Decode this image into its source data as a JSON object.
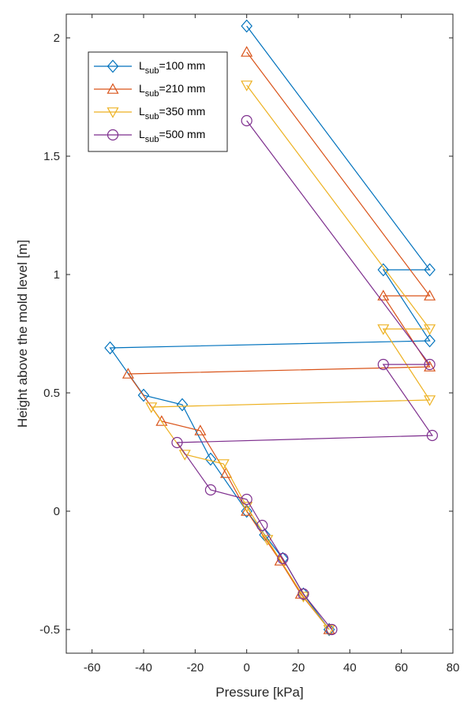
{
  "chart_data": {
    "type": "line",
    "xlabel": "Pressure [kPa]",
    "ylabel": "Height above the mold level [m]",
    "xlim": [
      -70,
      80
    ],
    "ylim": [
      -0.6,
      2.1
    ],
    "xticks": [
      -60,
      -40,
      -20,
      0,
      20,
      40,
      60,
      80
    ],
    "xtick_labels": [
      "-60",
      "-40",
      "-20",
      "0",
      "20",
      "40",
      "60",
      "80"
    ],
    "yticks": [
      -0.5,
      0,
      0.5,
      1,
      1.5,
      2
    ],
    "ytick_labels": [
      "-0.5",
      "0",
      "0.5",
      "1",
      "1.5",
      "2"
    ],
    "grid": false,
    "legend_position": "top-left",
    "series": [
      {
        "name": "L_sub=100 mm",
        "legend_main": "L",
        "legend_sub": "sub",
        "legend_rest": "=100 mm",
        "color": "#0072BD",
        "marker": "diamond",
        "points": [
          [
            0,
            2.05
          ],
          [
            71,
            1.02
          ],
          [
            53,
            1.02
          ],
          [
            71,
            0.72
          ],
          [
            -53,
            0.69
          ],
          [
            -40,
            0.49
          ],
          [
            -25,
            0.45
          ],
          [
            -14,
            0.22
          ],
          [
            0,
            0
          ],
          [
            7,
            -0.1
          ],
          [
            14,
            -0.2
          ],
          [
            22,
            -0.35
          ],
          [
            32,
            -0.5
          ]
        ]
      },
      {
        "name": "L_sub=210 mm",
        "legend_main": "L",
        "legend_sub": "sub",
        "legend_rest": "=210 mm",
        "color": "#D95319",
        "marker": "triangle-up",
        "points": [
          [
            0,
            1.94
          ],
          [
            71,
            0.91
          ],
          [
            53,
            0.91
          ],
          [
            71,
            0.61
          ],
          [
            -46,
            0.58
          ],
          [
            -33,
            0.38
          ],
          [
            -18,
            0.34
          ],
          [
            -8,
            0.16
          ],
          [
            0,
            0
          ],
          [
            13,
            -0.21
          ],
          [
            21,
            -0.35
          ],
          [
            32,
            -0.5
          ]
        ]
      },
      {
        "name": "L_sub=350 mm",
        "legend_main": "L",
        "legend_sub": "sub",
        "legend_rest": "=350 mm",
        "color": "#EDB120",
        "marker": "triangle-down",
        "points": [
          [
            0,
            1.8
          ],
          [
            71,
            0.77
          ],
          [
            53,
            0.77
          ],
          [
            71,
            0.47
          ],
          [
            -37,
            0.44
          ],
          [
            -24,
            0.24
          ],
          [
            -9,
            0.2
          ],
          [
            0,
            0.02
          ],
          [
            8,
            -0.12
          ],
          [
            22,
            -0.36
          ],
          [
            32,
            -0.5
          ]
        ]
      },
      {
        "name": "L_sub=500 mm",
        "legend_main": "L",
        "legend_sub": "sub",
        "legend_rest": "=500 mm",
        "color": "#7E2F8E",
        "marker": "circle",
        "points": [
          [
            0,
            1.65
          ],
          [
            71,
            0.62
          ],
          [
            53,
            0.62
          ],
          [
            72,
            0.32
          ],
          [
            -27,
            0.29
          ],
          [
            -14,
            0.09
          ],
          [
            0,
            0.05
          ],
          [
            6,
            -0.06
          ],
          [
            14,
            -0.2
          ],
          [
            22,
            -0.35
          ],
          [
            33,
            -0.5
          ]
        ]
      }
    ]
  }
}
